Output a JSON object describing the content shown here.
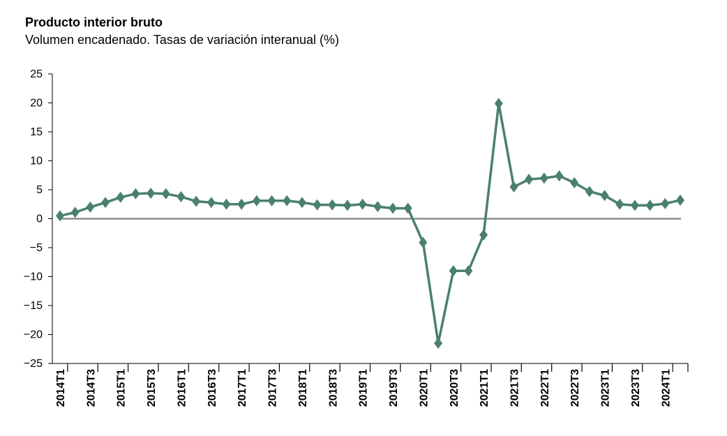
{
  "chart_data": {
    "type": "line",
    "title": "Producto interior bruto",
    "subtitle": "Volumen encadenado. Tasas de variación interanual (%)",
    "xlabel": "",
    "ylabel": "",
    "ylim": [
      -25,
      25
    ],
    "yticks": [
      25,
      20,
      15,
      10,
      5,
      0,
      -5,
      -10,
      -15,
      -20,
      -25
    ],
    "x": [
      "2014T1",
      "2014T2",
      "2014T3",
      "2014T4",
      "2015T1",
      "2015T2",
      "2015T3",
      "2015T4",
      "2016T1",
      "2016T2",
      "2016T3",
      "2016T4",
      "2017T1",
      "2017T2",
      "2017T3",
      "2017T4",
      "2018T1",
      "2018T2",
      "2018T3",
      "2018T4",
      "2019T1",
      "2019T2",
      "2019T3",
      "2019T4",
      "2020T1",
      "2020T2",
      "2020T3",
      "2020T4",
      "2021T1",
      "2021T2",
      "2021T3",
      "2021T4",
      "2022T1",
      "2022T2",
      "2022T3",
      "2022T4",
      "2023T1",
      "2023T2",
      "2023T3",
      "2023T4",
      "2024T1",
      "2024T2"
    ],
    "xtick_labels": [
      "2014T1",
      "2014T3",
      "2015T1",
      "2015T3",
      "2016T1",
      "2016T3",
      "2017T1",
      "2017T3",
      "2018T1",
      "2018T3",
      "2019T1",
      "2019T3",
      "2020T1",
      "2020T3",
      "2021T1",
      "2021T3",
      "2022T1",
      "2022T3",
      "2023T1",
      "2023T3",
      "2024T1"
    ],
    "series": [
      {
        "values": [
          0.5,
          1.1,
          2.0,
          2.8,
          3.7,
          4.3,
          4.4,
          4.3,
          3.8,
          3.0,
          2.8,
          2.5,
          2.5,
          3.1,
          3.1,
          3.1,
          2.8,
          2.4,
          2.4,
          2.3,
          2.5,
          2.1,
          1.8,
          1.8,
          -4.1,
          -21.5,
          -9.0,
          -9.0,
          -2.8,
          19.9,
          5.5,
          6.8,
          7.0,
          7.4,
          6.2,
          4.7,
          4.0,
          2.5,
          2.3,
          2.3,
          2.6,
          3.2
        ],
        "color": "#4a7f72"
      }
    ],
    "zero_line_color": "#808080",
    "grid": false,
    "legend": "none"
  }
}
